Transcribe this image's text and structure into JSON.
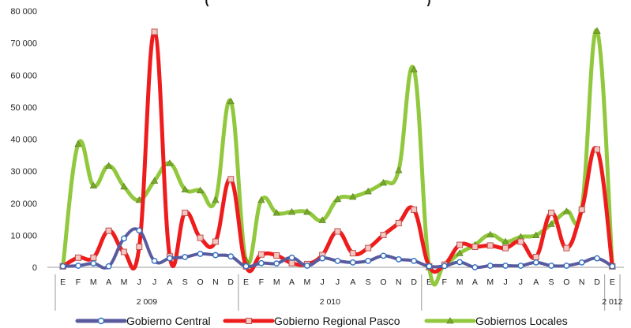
{
  "chart_data": {
    "type": "line",
    "title": "(",
    "title_right": ")",
    "xlabel": "",
    "ylabel": "",
    "ylim": [
      0,
      80000
    ],
    "y_ticks": [
      0,
      10000,
      20000,
      30000,
      40000,
      50000,
      60000,
      70000,
      80000
    ],
    "y_tick_labels": [
      "0",
      "10 000",
      "20 000",
      "30 000",
      "40 000",
      "50 000",
      "60 000",
      "70 000",
      "80 000"
    ],
    "categories": [
      "E",
      "F",
      "M",
      "A",
      "M",
      "J",
      "J",
      "A",
      "S",
      "O",
      "N",
      "D",
      "E",
      "F",
      "M",
      "A",
      "M",
      "J",
      "J",
      "A",
      "S",
      "O",
      "N",
      "D",
      "E",
      "F",
      "M",
      "A",
      "M",
      "J",
      "J",
      "A",
      "S",
      "O",
      "N",
      "D",
      "E"
    ],
    "year_groups": [
      {
        "label": "2 009",
        "start": 0,
        "end": 11
      },
      {
        "label": "2 010",
        "start": 12,
        "end": 23
      },
      {
        "label": "2 012",
        "start": 36,
        "end": 36
      }
    ],
    "grid": false,
    "legend": "bottom",
    "series": [
      {
        "name": "Gobierno Central",
        "color": "#5a5a9e",
        "marker": "circle",
        "marker_fill": "#ffffff",
        "marker_stroke": "#2f6fbf",
        "values": [
          300,
          500,
          1200,
          300,
          9000,
          11500,
          2000,
          2800,
          3200,
          4200,
          3800,
          3400,
          300,
          1300,
          1200,
          3000,
          500,
          2800,
          2000,
          1500,
          2000,
          3600,
          2500,
          2000,
          300,
          400,
          1600,
          0,
          500,
          500,
          500,
          1500,
          500,
          500,
          1500,
          2800,
          300
        ]
      },
      {
        "name": "Gobierno Regional Pasco",
        "color": "#ee1c1c",
        "marker": "square",
        "marker_fill": "#f4c7c3",
        "marker_stroke": "#c0504d",
        "values": [
          300,
          3000,
          3000,
          11400,
          4800,
          6400,
          73500,
          3400,
          17000,
          9200,
          8000,
          27500,
          300,
          4000,
          3700,
          1300,
          1000,
          3800,
          11200,
          4400,
          6000,
          10100,
          13800,
          18000,
          300,
          800,
          7000,
          6400,
          6800,
          6000,
          8000,
          3200,
          17000,
          6000,
          18000,
          36800,
          300
        ]
      },
      {
        "name": "Gobiernos Locales",
        "color": "#92c83e",
        "marker": "triangle",
        "marker_fill": "#7aa82e",
        "marker_stroke": "#5e8a1e",
        "values": [
          300,
          38500,
          25500,
          31700,
          25200,
          21000,
          27000,
          32500,
          24300,
          24000,
          21000,
          51800,
          2200,
          21000,
          17000,
          17300,
          17300,
          14700,
          21300,
          22000,
          23700,
          26400,
          30300,
          61800,
          0,
          800,
          4400,
          7000,
          10200,
          8000,
          9500,
          10000,
          13500,
          17500,
          18500,
          73800,
          300
        ]
      }
    ]
  }
}
